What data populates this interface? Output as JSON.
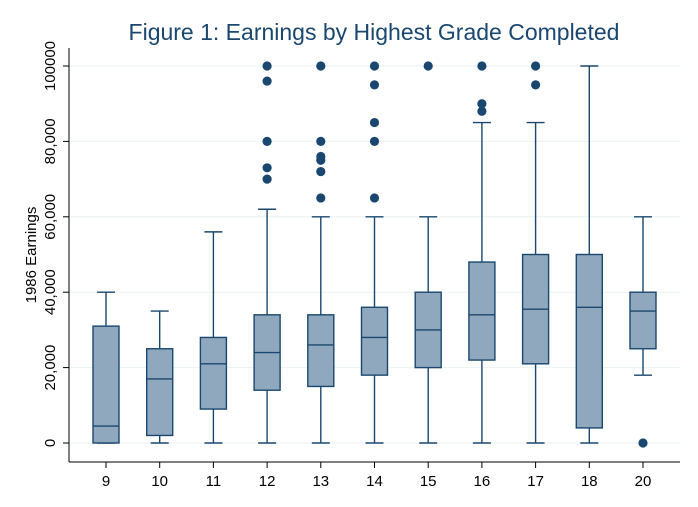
{
  "chart_data": {
    "type": "box",
    "title": "Figure 1: Earnings by Highest Grade Completed",
    "xlabel": "",
    "ylabel": "1986 Earnings",
    "ylim": [
      0,
      105000
    ],
    "yticks": [
      0,
      20000,
      40000,
      60000,
      80000,
      100000
    ],
    "ytick_labels": [
      "0",
      "20,000",
      "40,000",
      "60,000",
      "80,000",
      "100000"
    ],
    "grid": true,
    "legend": "none",
    "colors": {
      "box_fill": "#90a8bd",
      "box_stroke": "#1a476f",
      "outlier": "#1a476f",
      "title": "#1a476f",
      "grid": "#eaf2f3"
    },
    "categories": [
      "9",
      "10",
      "11",
      "12",
      "13",
      "14",
      "15",
      "16",
      "17",
      "18",
      "20"
    ],
    "boxes": [
      {
        "category": "9",
        "whisker_low": 0,
        "q1": 0,
        "median": 4500,
        "q3": 31000,
        "whisker_high": 40000,
        "outliers": []
      },
      {
        "category": "10",
        "whisker_low": 0,
        "q1": 2000,
        "median": 17000,
        "q3": 25000,
        "whisker_high": 35000,
        "outliers": []
      },
      {
        "category": "11",
        "whisker_low": 0,
        "q1": 9000,
        "median": 21000,
        "q3": 28000,
        "whisker_high": 56000,
        "outliers": []
      },
      {
        "category": "12",
        "whisker_low": 0,
        "q1": 14000,
        "median": 24000,
        "q3": 34000,
        "whisker_high": 62000,
        "outliers": [
          70000,
          73000,
          80000,
          96000,
          100000
        ]
      },
      {
        "category": "13",
        "whisker_low": 0,
        "q1": 15000,
        "median": 26000,
        "q3": 34000,
        "whisker_high": 60000,
        "outliers": [
          65000,
          72000,
          75000,
          76000,
          80000,
          100000
        ]
      },
      {
        "category": "14",
        "whisker_low": 0,
        "q1": 18000,
        "median": 28000,
        "q3": 36000,
        "whisker_high": 60000,
        "outliers": [
          65000,
          80000,
          85000,
          95000,
          100000
        ]
      },
      {
        "category": "15",
        "whisker_low": 0,
        "q1": 20000,
        "median": 30000,
        "q3": 40000,
        "whisker_high": 60000,
        "outliers": [
          100000
        ]
      },
      {
        "category": "16",
        "whisker_low": 0,
        "q1": 22000,
        "median": 34000,
        "q3": 48000,
        "whisker_high": 85000,
        "outliers": [
          88000,
          90000,
          100000
        ]
      },
      {
        "category": "17",
        "whisker_low": 0,
        "q1": 21000,
        "median": 35500,
        "q3": 50000,
        "whisker_high": 85000,
        "outliers": [
          95000,
          100000
        ]
      },
      {
        "category": "18",
        "whisker_low": 0,
        "q1": 4000,
        "median": 36000,
        "q3": 50000,
        "whisker_high": 100000,
        "outliers": []
      },
      {
        "category": "20",
        "whisker_low": 18000,
        "q1": 25000,
        "median": 35000,
        "q3": 40000,
        "whisker_high": 60000,
        "outliers": [
          0
        ]
      }
    ]
  }
}
